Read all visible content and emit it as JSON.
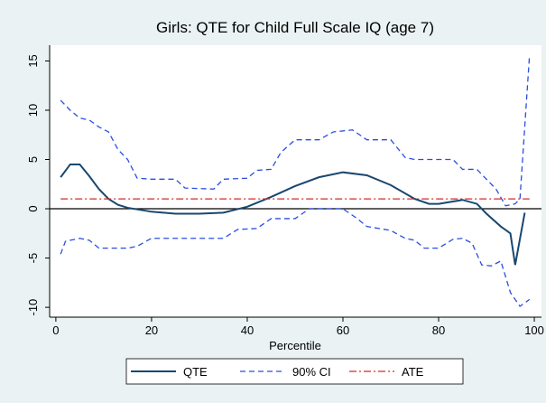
{
  "chart_data": {
    "type": "line",
    "title": "Girls: QTE for Child Full Scale IQ (age 7)",
    "x_label": "Percentile",
    "xlim": [
      -1.3,
      101.5
    ],
    "xticks": [
      0,
      20,
      40,
      60,
      80,
      100
    ],
    "ylim": [
      -11,
      16.6
    ],
    "yticks": [
      -10,
      -5,
      0,
      5,
      10,
      15
    ],
    "yline": 0,
    "series": [
      {
        "name": "QTE",
        "color": "#1a476f",
        "dash": "solid",
        "x": [
          1,
          3,
          5,
          7,
          9,
          11,
          13,
          15,
          20,
          25,
          30,
          35,
          40,
          45,
          50,
          55,
          60,
          65,
          70,
          75,
          78,
          80,
          85,
          88,
          90,
          93,
          95,
          96,
          98
        ],
        "values": [
          3.2,
          4.5,
          4.5,
          3.3,
          2.0,
          1.0,
          0.4,
          0.1,
          -0.3,
          -0.5,
          -0.5,
          -0.4,
          0.2,
          1.2,
          2.3,
          3.2,
          3.7,
          3.4,
          2.4,
          1.0,
          0.5,
          0.5,
          0.9,
          0.5,
          -0.5,
          -1.8,
          -2.5,
          -5.7,
          -0.4
        ]
      },
      {
        "name": "90% CI",
        "color": "#2a4ee0",
        "dash": "dashed",
        "x": [
          1,
          3,
          5,
          7,
          9,
          11,
          13,
          15,
          17,
          20,
          25,
          27,
          33,
          35,
          40,
          42,
          45,
          47,
          50,
          55,
          58,
          62,
          65,
          70,
          73,
          75,
          80,
          83,
          85,
          88,
          90,
          92,
          94,
          96,
          97,
          99
        ],
        "values": [
          11,
          10,
          9.2,
          9,
          8.3,
          7.8,
          6,
          5,
          3.1,
          3,
          3,
          2.1,
          2,
          3,
          3.1,
          3.9,
          4,
          5.7,
          7,
          7,
          7.8,
          8,
          7,
          7,
          5.2,
          5,
          5,
          5,
          4,
          4,
          3,
          2,
          0.3,
          0.5,
          1,
          15.6
        ]
      },
      {
        "name": "90% CI",
        "color": "#2a4ee0",
        "dash": "dashed",
        "legend": false,
        "x": [
          1,
          2,
          5,
          7,
          9,
          15,
          17,
          20,
          30,
          35,
          38,
          42,
          45,
          50,
          53,
          60,
          63,
          65,
          70,
          73,
          75,
          77,
          80,
          83,
          85,
          87,
          89,
          91,
          93,
          95,
          97,
          99
        ],
        "values": [
          -4.6,
          -3.3,
          -3,
          -3.2,
          -4,
          -4,
          -3.8,
          -3,
          -3,
          -3,
          -2.1,
          -2,
          -1,
          -1,
          0,
          0,
          -1,
          -1.8,
          -2.2,
          -3,
          -3.2,
          -4,
          -4,
          -3.1,
          -3,
          -3.5,
          -5.7,
          -5.8,
          -5.3,
          -8.5,
          -9.9,
          -9.2
        ]
      },
      {
        "name": "ATE",
        "color": "#d42a2a",
        "dash": "dashdot",
        "x": [
          1,
          99
        ],
        "values": [
          1,
          1
        ]
      }
    ]
  }
}
